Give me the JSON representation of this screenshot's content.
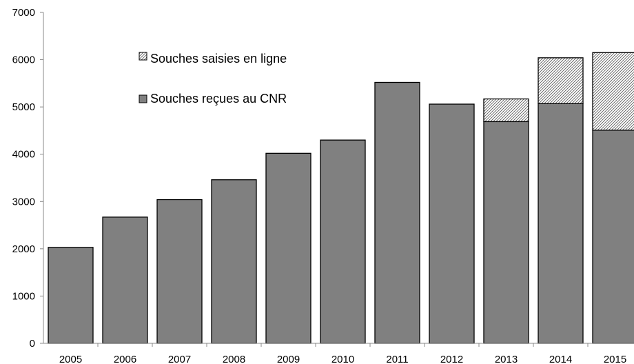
{
  "chart_data": {
    "type": "bar",
    "stacked": true,
    "title": "",
    "xlabel": "",
    "ylabel": "",
    "categories": [
      "2005",
      "2006",
      "2007",
      "2008",
      "2009",
      "2010",
      "2011",
      "2012",
      "2013",
      "2014",
      "2015"
    ],
    "series": [
      {
        "name": "Souches reçues au CNR",
        "color": "#808080",
        "pattern": "solid",
        "values": [
          2030,
          2670,
          3040,
          3460,
          4020,
          4300,
          5520,
          5060,
          4690,
          5070,
          4510
        ]
      },
      {
        "name": "Souches saisies en ligne",
        "color": "#ffffff",
        "pattern": "diagonal-hatch",
        "values": [
          0,
          0,
          0,
          0,
          0,
          0,
          0,
          0,
          480,
          970,
          1640
        ]
      }
    ],
    "y_ticks": [
      "0",
      "1000",
      "2000",
      "3000",
      "4000",
      "5000",
      "6000",
      "7000"
    ],
    "ylim": [
      0,
      7000
    ],
    "grid": false,
    "legend_position": "top-left",
    "legend_order": [
      1,
      0
    ]
  }
}
